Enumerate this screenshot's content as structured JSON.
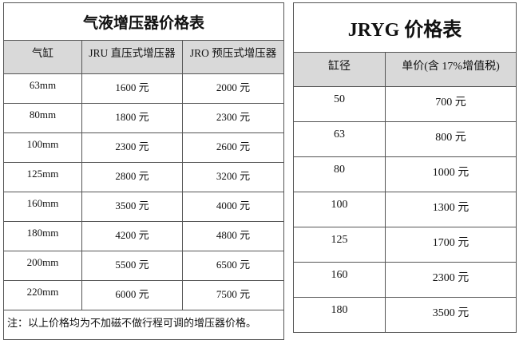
{
  "left_table": {
    "title": "气液增压器价格表",
    "headers": [
      "气缸",
      "JRU 直压式增压器",
      "JRO 预压式增压器"
    ],
    "rows": [
      [
        "63mm",
        "1600 元",
        "2000 元"
      ],
      [
        "80mm",
        "1800 元",
        "2300 元"
      ],
      [
        "100mm",
        "2300 元",
        "2600 元"
      ],
      [
        "125mm",
        "2800 元",
        "3200 元"
      ],
      [
        "160mm",
        "3500 元",
        "4000 元"
      ],
      [
        "180mm",
        "4200 元",
        "4800 元"
      ],
      [
        "200mm",
        "5500 元",
        "6500 元"
      ],
      [
        "220mm",
        "6000 元",
        "7500 元"
      ]
    ],
    "note": "注：以上价格均为不加磁不做行程可调的增压器价格。"
  },
  "right_table": {
    "title": "JRYG 价格表",
    "headers": [
      "缸径",
      "单价(含 17%增值税)"
    ],
    "rows": [
      [
        "50",
        "700 元"
      ],
      [
        "63",
        "800 元"
      ],
      [
        "80",
        "1000 元"
      ],
      [
        "100",
        "1300 元"
      ],
      [
        "125",
        "1700 元"
      ],
      [
        "160",
        "2300 元"
      ],
      [
        "180",
        "3500 元"
      ]
    ]
  }
}
